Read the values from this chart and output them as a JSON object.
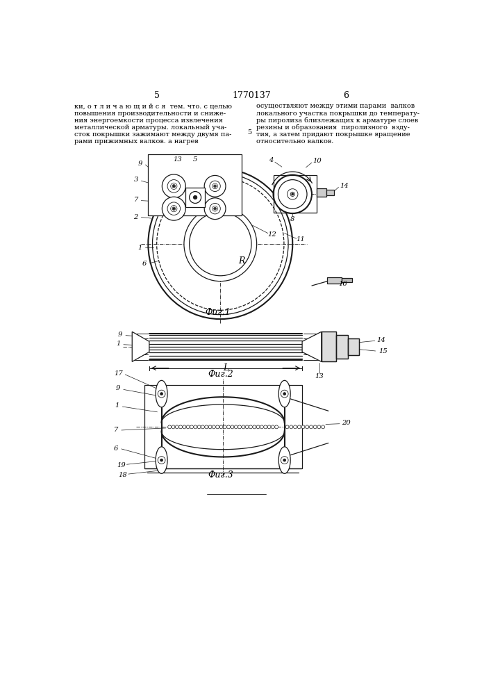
{
  "page_numbers": [
    "5",
    "6"
  ],
  "patent_number": "1770137",
  "text_left": "ки, о т л и ч а ю щ и й с я  тем. что. с целью\nповышения производительности и сниже-\nния энергоемкости процесса извлечения\nметаллической арматуры. локальный уча-\nсток покрышки зажимают между двумя па-\nрами прижимных валков. а нагрев",
  "text_right": "осуществляют между этими парами  валков\nлокального участка покрышки до температу-\nры пиролиза близлежащих к арматуре слоев\nрезины и образования  пиролизного  взду-\nтия, а затем придают покрышке вращение\nотносительно валков.",
  "fig1_caption": "Фиг.1",
  "fig2_caption": "Фиг.2",
  "fig3_caption": "Фиг.3",
  "bg_color": "#ffffff",
  "line_color": "#1a1a1a",
  "lw": 0.9,
  "tlw": 1.5
}
